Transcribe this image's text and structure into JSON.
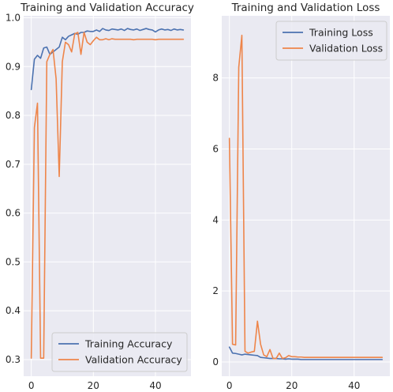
{
  "chart_data": [
    {
      "type": "line",
      "title": "Training and Validation Accuracy",
      "xlabel": "",
      "ylabel": "",
      "xlim": [
        -2.45,
        51.45
      ],
      "ylim": [
        0.266,
        1.004
      ],
      "x_ticks": [
        0,
        20,
        40
      ],
      "y_ticks": [
        0.3,
        0.4,
        0.5,
        0.6,
        0.7,
        0.8,
        0.9,
        1.0
      ],
      "x_tick_labels": [
        "0",
        "20",
        "40"
      ],
      "y_tick_labels": [
        "0.3",
        "0.4",
        "0.5",
        "0.6",
        "0.7",
        "0.8",
        "0.9",
        "1.0"
      ],
      "grid": true,
      "legend_position": "bottom-right",
      "series": [
        {
          "name": "Training Accuracy",
          "color": "#4c72b0",
          "x": [
            0,
            1,
            2,
            3,
            4,
            5,
            6,
            7,
            8,
            9,
            10,
            11,
            12,
            13,
            14,
            15,
            16,
            17,
            18,
            19,
            20,
            21,
            22,
            23,
            24,
            25,
            26,
            27,
            28,
            29,
            30,
            31,
            32,
            33,
            34,
            35,
            36,
            37,
            38,
            39,
            40,
            41,
            42,
            43,
            44,
            45,
            46,
            47,
            48,
            49
          ],
          "values": [
            0.853,
            0.915,
            0.923,
            0.917,
            0.938,
            0.94,
            0.925,
            0.93,
            0.935,
            0.94,
            0.96,
            0.955,
            0.962,
            0.965,
            0.968,
            0.966,
            0.97,
            0.97,
            0.973,
            0.972,
            0.972,
            0.975,
            0.972,
            0.978,
            0.975,
            0.974,
            0.977,
            0.976,
            0.975,
            0.977,
            0.974,
            0.978,
            0.976,
            0.975,
            0.977,
            0.974,
            0.976,
            0.978,
            0.976,
            0.975,
            0.971,
            0.975,
            0.977,
            0.975,
            0.976,
            0.974,
            0.977,
            0.975,
            0.976,
            0.975
          ]
        },
        {
          "name": "Validation Accuracy",
          "color": "#ee854a",
          "x": [
            0,
            1,
            2,
            3,
            4,
            5,
            6,
            7,
            8,
            9,
            10,
            11,
            12,
            13,
            14,
            15,
            16,
            17,
            18,
            19,
            20,
            21,
            22,
            23,
            24,
            25,
            26,
            27,
            28,
            29,
            30,
            31,
            32,
            33,
            34,
            35,
            36,
            37,
            38,
            39,
            40,
            41,
            42,
            43,
            44,
            45,
            46,
            47,
            48,
            49
          ],
          "values": [
            0.303,
            0.775,
            0.825,
            0.303,
            0.303,
            0.91,
            0.925,
            0.935,
            0.875,
            0.675,
            0.91,
            0.95,
            0.945,
            0.93,
            0.967,
            0.97,
            0.925,
            0.97,
            0.95,
            0.945,
            0.953,
            0.96,
            0.955,
            0.955,
            0.957,
            0.955,
            0.957,
            0.956,
            0.956,
            0.956,
            0.956,
            0.956,
            0.956,
            0.955,
            0.956,
            0.956,
            0.956,
            0.956,
            0.956,
            0.956,
            0.955,
            0.956,
            0.956,
            0.956,
            0.956,
            0.956,
            0.956,
            0.956,
            0.956,
            0.956
          ]
        }
      ]
    },
    {
      "type": "line",
      "title": "Training and Validation Loss",
      "xlabel": "",
      "ylabel": "",
      "xlim": [
        -2.45,
        51.45
      ],
      "ylim": [
        -0.4,
        9.75
      ],
      "x_ticks": [
        0,
        20,
        40
      ],
      "y_ticks": [
        0,
        2,
        4,
        6,
        8
      ],
      "x_tick_labels": [
        "0",
        "20",
        "40"
      ],
      "y_tick_labels": [
        "0",
        "2",
        "4",
        "6",
        "8"
      ],
      "grid": true,
      "legend_position": "top-right",
      "series": [
        {
          "name": "Training Loss",
          "color": "#4c72b0",
          "x": [
            0,
            1,
            2,
            3,
            4,
            5,
            6,
            7,
            8,
            9,
            10,
            11,
            12,
            13,
            14,
            15,
            16,
            17,
            18,
            19,
            20,
            21,
            22,
            23,
            24,
            25,
            26,
            27,
            28,
            29,
            30,
            31,
            32,
            33,
            34,
            35,
            36,
            37,
            38,
            39,
            40,
            41,
            42,
            43,
            44,
            45,
            46,
            47,
            48,
            49
          ],
          "values": [
            0.42,
            0.25,
            0.24,
            0.22,
            0.2,
            0.22,
            0.21,
            0.2,
            0.19,
            0.18,
            0.13,
            0.12,
            0.11,
            0.1,
            0.1,
            0.1,
            0.09,
            0.09,
            0.08,
            0.09,
            0.08,
            0.08,
            0.08,
            0.07,
            0.07,
            0.07,
            0.07,
            0.07,
            0.07,
            0.07,
            0.07,
            0.07,
            0.07,
            0.07,
            0.07,
            0.07,
            0.07,
            0.07,
            0.07,
            0.07,
            0.07,
            0.07,
            0.07,
            0.07,
            0.07,
            0.07,
            0.07,
            0.07,
            0.07,
            0.07
          ]
        },
        {
          "name": "Validation Loss",
          "color": "#ee854a",
          "x": [
            0,
            1,
            2,
            3,
            4,
            5,
            6,
            7,
            8,
            9,
            10,
            11,
            12,
            13,
            14,
            15,
            16,
            17,
            18,
            19,
            20,
            21,
            22,
            23,
            24,
            25,
            26,
            27,
            28,
            29,
            30,
            31,
            32,
            33,
            34,
            35,
            36,
            37,
            38,
            39,
            40,
            41,
            42,
            43,
            44,
            45,
            46,
            47,
            48,
            49
          ],
          "values": [
            6.3,
            0.5,
            0.48,
            8.3,
            9.2,
            0.3,
            0.25,
            0.28,
            0.3,
            1.15,
            0.5,
            0.2,
            0.15,
            0.35,
            0.1,
            0.1,
            0.25,
            0.1,
            0.12,
            0.18,
            0.15,
            0.15,
            0.14,
            0.14,
            0.13,
            0.13,
            0.13,
            0.13,
            0.13,
            0.13,
            0.13,
            0.13,
            0.13,
            0.13,
            0.13,
            0.13,
            0.13,
            0.13,
            0.13,
            0.13,
            0.13,
            0.13,
            0.13,
            0.13,
            0.13,
            0.13,
            0.13,
            0.13,
            0.13,
            0.13
          ]
        }
      ]
    }
  ],
  "colors": {
    "plot_background": "#eaeaf2",
    "grid": "#ffffff",
    "text": "#262626"
  }
}
